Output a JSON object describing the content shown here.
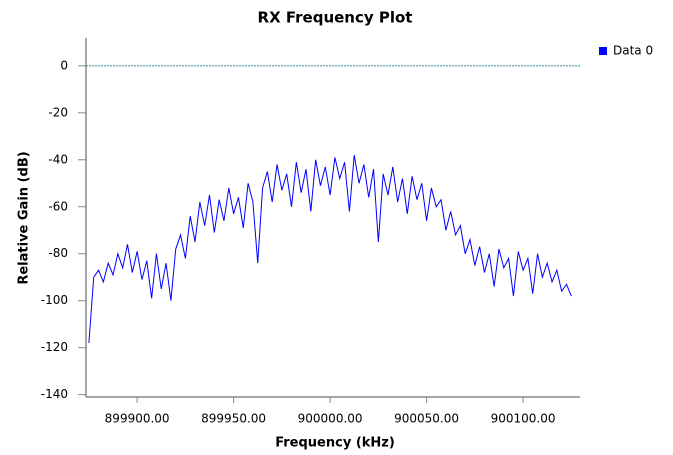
{
  "chart_data": {
    "type": "line",
    "title": "RX Frequency Plot",
    "xlabel": "Frequency (kHz)",
    "ylabel": "Relative Gain (dB)",
    "xlim": [
      899873.5,
      900129.5
    ],
    "ylim": [
      -141,
      11
    ],
    "xticks": [
      {
        "value": 899900,
        "label": "899900.00"
      },
      {
        "value": 899950,
        "label": "899950.00"
      },
      {
        "value": 900000,
        "label": "900000.00"
      },
      {
        "value": 900050,
        "label": "900050.00"
      },
      {
        "value": 900100,
        "label": "900100.00"
      }
    ],
    "yticks": [
      0,
      -20,
      -40,
      -60,
      -80,
      -100,
      -120,
      -140
    ],
    "hline": 0,
    "hline_color": "#2e8b8b",
    "legend": "upper right",
    "x": [
      899875,
      899877.5,
      899880,
      899882.5,
      899885,
      899887.5,
      899890,
      899892.5,
      899895,
      899897.5,
      899900,
      899902.5,
      899905,
      899907.5,
      899910,
      899912.5,
      899915,
      899917.5,
      899920,
      899922.5,
      899925,
      899927.5,
      899930,
      899932.5,
      899935,
      899937.5,
      899940,
      899942.5,
      899945,
      899947.5,
      899950,
      899952.5,
      899955,
      899957.5,
      899960,
      899962.5,
      899965,
      899967.5,
      899970,
      899972.5,
      899975,
      899977.5,
      899980,
      899982.5,
      899985,
      899987.5,
      899990,
      899992.5,
      899995,
      899997.5,
      900000,
      900002.5,
      900005,
      900007.5,
      900010,
      900012.5,
      900015,
      900017.5,
      900020,
      900022.5,
      900025,
      900027.5,
      900030,
      900032.5,
      900035,
      900037.5,
      900040,
      900042.5,
      900045,
      900047.5,
      900050,
      900052.5,
      900055,
      900057.5,
      900060,
      900062.5,
      900065,
      900067.5,
      900070,
      900072.5,
      900075,
      900077.5,
      900080,
      900082.5,
      900085,
      900087.5,
      900090,
      900092.5,
      900095,
      900097.5,
      900100,
      900102.5,
      900105,
      900107.5,
      900110,
      900112.5,
      900115,
      900117.5,
      900120,
      900122.5,
      900125
    ],
    "series": [
      {
        "name": "Data 0",
        "color": "#0000ff",
        "values": [
          -118,
          -90,
          -87,
          -92,
          -84,
          -89,
          -80,
          -86,
          -76,
          -88,
          -79,
          -91,
          -83,
          -99,
          -80,
          -95,
          -84,
          -100,
          -78,
          -72,
          -82,
          -64,
          -75,
          -58,
          -68,
          -55,
          -71,
          -57,
          -66,
          -52,
          -63,
          -56,
          -69,
          -50,
          -58,
          -84,
          -52,
          -45,
          -58,
          -42,
          -53,
          -46,
          -60,
          -41,
          -54,
          -44,
          -62,
          -40,
          -51,
          -43,
          -55,
          -39,
          -48,
          -41,
          -62,
          -38,
          -50,
          -42,
          -56,
          -44,
          -75,
          -46,
          -55,
          -43,
          -58,
          -48,
          -63,
          -47,
          -57,
          -50,
          -66,
          -52,
          -60,
          -57,
          -70,
          -62,
          -72,
          -68,
          -80,
          -74,
          -85,
          -77,
          -88,
          -80,
          -94,
          -78,
          -86,
          -82,
          -98,
          -79,
          -87,
          -82,
          -97,
          -80,
          -90,
          -84,
          -92,
          -87,
          -96,
          -93,
          -98
        ]
      }
    ]
  }
}
